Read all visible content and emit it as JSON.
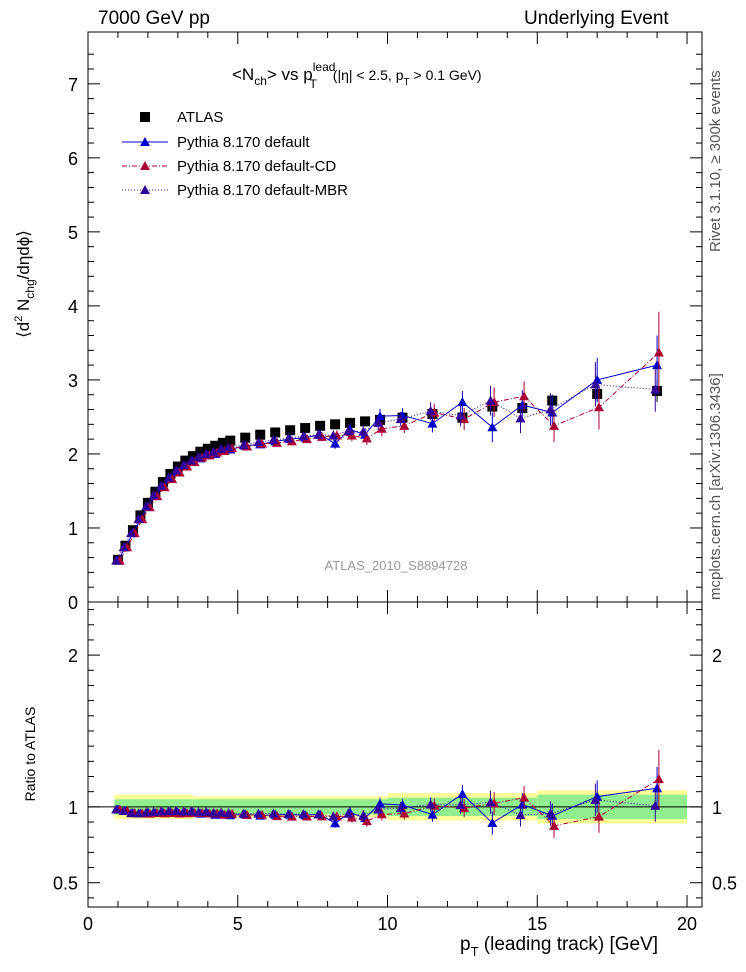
{
  "header": {
    "left": "7000 GeV pp",
    "right": "Underlying Event",
    "side_top": "Rivet 3.1.10, ≥ 300k events",
    "side_bottom": "mcplots.cern.ch [arXiv:1306.3436]"
  },
  "colors": {
    "atlas": "#000000",
    "default": "#0000cc",
    "cd": "#aa0033",
    "mbr": "#330099",
    "band_inner": "#90ee90",
    "band_outer": "#ffff99"
  },
  "chart_data": [
    {
      "type": "scatter",
      "title_parts": {
        "lhs_main": "<N",
        "lhs_sub": "ch",
        "mid": "> vs p",
        "lead_sup": "lead",
        "lead_sub": "T",
        "cut_a": "(|η| < 2.5, p",
        "cut_sub": "T",
        "cut_b": " > 0.1 GeV)"
      },
      "ylabel_parts": {
        "a": "⟨d",
        "sup": "2",
        "b": " N",
        "sub": "chg",
        "c": "/dηdϕ⟩"
      },
      "watermark": "ATLAS_2010_S8894728",
      "xlim": [
        0,
        20.5
      ],
      "ylim": [
        0,
        7.7
      ],
      "yticks": [
        0,
        1,
        2,
        3,
        4,
        5,
        6,
        7
      ],
      "ytick_labels": [
        "0",
        "1",
        "2",
        "3",
        "4",
        "5",
        "6",
        "7"
      ],
      "legend": [
        "ATLAS",
        "Pythia 8.170 default",
        "Pythia 8.170 default-CD",
        "Pythia 8.170 default-MBR"
      ],
      "x": [
        1.0,
        1.25,
        1.5,
        1.75,
        2.0,
        2.25,
        2.5,
        2.75,
        3.0,
        3.25,
        3.5,
        3.75,
        4.0,
        4.25,
        4.5,
        4.75,
        5.25,
        5.75,
        6.25,
        6.75,
        7.25,
        7.75,
        8.25,
        8.75,
        9.25,
        9.75,
        10.5,
        11.5,
        12.5,
        13.5,
        14.5,
        15.5,
        17.0,
        19.0
      ],
      "series": [
        {
          "name": "ATLAS",
          "values": [
            0.57,
            0.76,
            0.97,
            1.17,
            1.34,
            1.49,
            1.62,
            1.73,
            1.83,
            1.91,
            1.97,
            2.03,
            2.07,
            2.11,
            2.15,
            2.18,
            2.22,
            2.26,
            2.29,
            2.32,
            2.35,
            2.38,
            2.4,
            2.42,
            2.44,
            2.46,
            2.49,
            2.54,
            2.49,
            2.64,
            2.62,
            2.72,
            2.81,
            2.85
          ],
          "errors": [
            0.02,
            0.02,
            0.02,
            0.02,
            0.02,
            0.02,
            0.02,
            0.02,
            0.02,
            0.02,
            0.02,
            0.02,
            0.02,
            0.02,
            0.02,
            0.02,
            0.02,
            0.02,
            0.02,
            0.02,
            0.02,
            0.02,
            0.02,
            0.03,
            0.03,
            0.03,
            0.03,
            0.04,
            0.05,
            0.06,
            0.07,
            0.08,
            0.1,
            0.15
          ]
        },
        {
          "name": "Pythia 8.170 default",
          "values": [
            0.56,
            0.74,
            0.93,
            1.12,
            1.29,
            1.43,
            1.56,
            1.67,
            1.76,
            1.84,
            1.9,
            1.94,
            1.98,
            2.0,
            2.04,
            2.06,
            2.11,
            2.13,
            2.17,
            2.2,
            2.22,
            2.26,
            2.14,
            2.33,
            2.26,
            2.51,
            2.52,
            2.41,
            2.7,
            2.36,
            2.66,
            2.56,
            3.0,
            3.2
          ],
          "errors": [
            0.01,
            0.01,
            0.01,
            0.01,
            0.01,
            0.01,
            0.01,
            0.02,
            0.02,
            0.02,
            0.02,
            0.02,
            0.02,
            0.02,
            0.03,
            0.03,
            0.03,
            0.04,
            0.04,
            0.05,
            0.05,
            0.06,
            0.07,
            0.08,
            0.09,
            0.1,
            0.1,
            0.12,
            0.15,
            0.2,
            0.2,
            0.22,
            0.3,
            0.4
          ]
        },
        {
          "name": "Pythia 8.170 default-CD",
          "values": [
            0.56,
            0.74,
            0.93,
            1.12,
            1.28,
            1.43,
            1.55,
            1.66,
            1.75,
            1.83,
            1.89,
            1.95,
            1.98,
            2.02,
            2.04,
            2.08,
            2.1,
            2.14,
            2.15,
            2.17,
            2.2,
            2.23,
            2.25,
            2.25,
            2.21,
            2.34,
            2.38,
            2.56,
            2.47,
            2.7,
            2.78,
            2.38,
            2.63,
            3.37
          ],
          "errors": [
            0.01,
            0.01,
            0.01,
            0.01,
            0.01,
            0.01,
            0.01,
            0.02,
            0.02,
            0.02,
            0.02,
            0.02,
            0.02,
            0.02,
            0.03,
            0.03,
            0.03,
            0.04,
            0.04,
            0.05,
            0.05,
            0.06,
            0.07,
            0.08,
            0.09,
            0.1,
            0.1,
            0.12,
            0.15,
            0.2,
            0.2,
            0.22,
            0.3,
            0.55
          ]
        },
        {
          "name": "Pythia 8.170 default-MBR",
          "values": [
            0.56,
            0.74,
            0.93,
            1.12,
            1.29,
            1.44,
            1.57,
            1.68,
            1.78,
            1.85,
            1.91,
            1.96,
            2.0,
            2.03,
            2.07,
            2.09,
            2.12,
            2.16,
            2.19,
            2.21,
            2.24,
            2.26,
            2.25,
            2.31,
            2.3,
            2.42,
            2.47,
            2.58,
            2.52,
            2.72,
            2.48,
            2.6,
            2.94,
            2.87
          ],
          "errors": [
            0.01,
            0.01,
            0.01,
            0.01,
            0.01,
            0.01,
            0.01,
            0.02,
            0.02,
            0.02,
            0.02,
            0.02,
            0.02,
            0.02,
            0.03,
            0.03,
            0.03,
            0.04,
            0.04,
            0.05,
            0.05,
            0.06,
            0.07,
            0.08,
            0.09,
            0.1,
            0.1,
            0.12,
            0.15,
            0.2,
            0.2,
            0.22,
            0.3,
            0.3
          ]
        }
      ]
    },
    {
      "type": "scatter",
      "ylabel": "Ratio to ATLAS",
      "xlabel_parts": {
        "a": "p",
        "sub": "T",
        "b": " (leading track) [GeV]"
      },
      "xlim": [
        0,
        20.5
      ],
      "ylim": [
        0.34,
        2.35
      ],
      "xticks": [
        0,
        5,
        10,
        15,
        20
      ],
      "xtick_labels": [
        "0",
        "5",
        "10",
        "15",
        "20"
      ],
      "yticks": [
        0.5,
        1,
        2
      ],
      "ytick_labels": [
        "0.5",
        "1",
        "2"
      ],
      "band_edges": [
        0.88,
        3.5,
        10.0,
        15.0,
        20.0
      ],
      "band_inner": [
        0.05,
        0.05,
        0.06,
        0.08
      ],
      "band_outer": [
        0.08,
        0.07,
        0.09,
        0.11
      ]
    }
  ]
}
